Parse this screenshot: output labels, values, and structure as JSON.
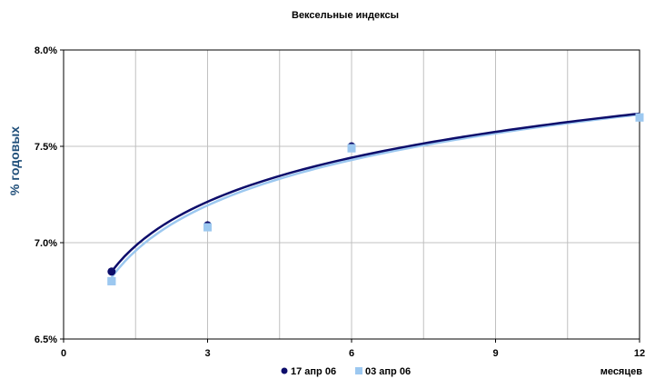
{
  "chart_data": {
    "type": "scatter",
    "title": "Вексельные индексы",
    "ylabel": "% годовых",
    "xlabel": "месяцев",
    "xlim": [
      0,
      12
    ],
    "ylim": [
      6.5,
      8.0
    ],
    "x_ticks": [
      0,
      3,
      6,
      9,
      12
    ],
    "x_tick_labels": [
      "0",
      "3",
      "6",
      "9",
      "12"
    ],
    "y_ticks": [
      6.5,
      7.0,
      7.5,
      8.0
    ],
    "y_tick_labels": [
      "6.5%",
      "7.0%",
      "7.5%",
      "8.0%"
    ],
    "x_minor_grid_step": 1.5,
    "grid": true,
    "legend_position": "bottom",
    "trendline": "logarithmic",
    "series": [
      {
        "name": "17 апр 06",
        "color": "#0d0d6b",
        "marker": "circle",
        "x": [
          1,
          3,
          6,
          12
        ],
        "y": [
          6.85,
          7.09,
          7.5,
          7.65
        ],
        "trend": {
          "a": 6.85,
          "b": 0.33
        }
      },
      {
        "name": "03 апр 06",
        "color": "#9cc8f0",
        "marker": "square",
        "x": [
          1,
          3,
          6,
          12
        ],
        "y": [
          6.8,
          7.08,
          7.49,
          7.65
        ],
        "trend": {
          "a": 6.82,
          "b": 0.34
        }
      }
    ]
  }
}
